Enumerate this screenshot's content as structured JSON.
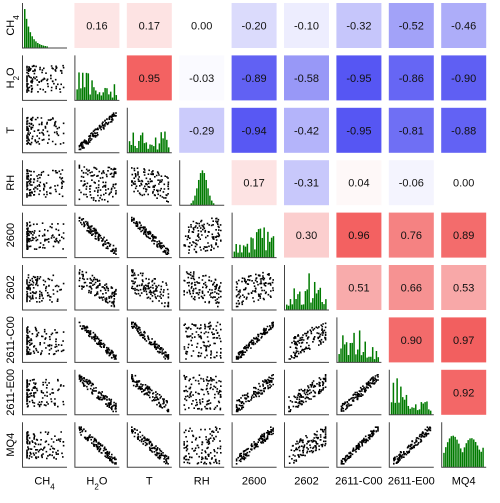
{
  "chart_data": {
    "type": "scatter-matrix",
    "variables": [
      {
        "label": "CH",
        "sub": "4"
      },
      {
        "label": "H",
        "sub": "2",
        "suffix": "O"
      },
      {
        "label": "T",
        "sub": "",
        "suffix": ""
      },
      {
        "label": "RH",
        "sub": "",
        "suffix": ""
      },
      {
        "label": "2600",
        "sub": "",
        "suffix": ""
      },
      {
        "label": "2602",
        "sub": "",
        "suffix": ""
      },
      {
        "label": "2611-C00",
        "sub": "",
        "suffix": ""
      },
      {
        "label": "2611-E00",
        "sub": "",
        "suffix": ""
      },
      {
        "label": "MQ4",
        "sub": "",
        "suffix": ""
      }
    ],
    "correlations": [
      {
        "row": 0,
        "col": 1,
        "text": "0.16",
        "value": 0.16
      },
      {
        "row": 0,
        "col": 2,
        "text": "0.17",
        "value": 0.17
      },
      {
        "row": 0,
        "col": 3,
        "text": "0.00",
        "value": 0.0
      },
      {
        "row": 0,
        "col": 4,
        "text": "-0.20",
        "value": -0.2
      },
      {
        "row": 0,
        "col": 5,
        "text": "-0.10",
        "value": -0.1
      },
      {
        "row": 0,
        "col": 6,
        "text": "-0.32",
        "value": -0.32
      },
      {
        "row": 0,
        "col": 7,
        "text": "-0.52",
        "value": -0.52
      },
      {
        "row": 0,
        "col": 8,
        "text": "-0.46",
        "value": -0.46
      },
      {
        "row": 1,
        "col": 2,
        "text": "0.95",
        "value": 0.95
      },
      {
        "row": 1,
        "col": 3,
        "text": "-0.03",
        "value": -0.03
      },
      {
        "row": 1,
        "col": 4,
        "text": "-0.89",
        "value": -0.89
      },
      {
        "row": 1,
        "col": 5,
        "text": "-0.58",
        "value": -0.58
      },
      {
        "row": 1,
        "col": 6,
        "text": "-0.95",
        "value": -0.95
      },
      {
        "row": 1,
        "col": 7,
        "text": "-0.86",
        "value": -0.86
      },
      {
        "row": 1,
        "col": 8,
        "text": "-0.90",
        "value": -0.9
      },
      {
        "row": 2,
        "col": 3,
        "text": "-0.29",
        "value": -0.29
      },
      {
        "row": 2,
        "col": 4,
        "text": "-0.94",
        "value": -0.94
      },
      {
        "row": 2,
        "col": 5,
        "text": "-0.42",
        "value": -0.42
      },
      {
        "row": 2,
        "col": 6,
        "text": "-0.95",
        "value": -0.95
      },
      {
        "row": 2,
        "col": 7,
        "text": "-0.81",
        "value": -0.81
      },
      {
        "row": 2,
        "col": 8,
        "text": "-0.88",
        "value": -0.88
      },
      {
        "row": 3,
        "col": 4,
        "text": "0.17",
        "value": 0.17
      },
      {
        "row": 3,
        "col": 5,
        "text": "-0.31",
        "value": -0.31
      },
      {
        "row": 3,
        "col": 6,
        "text": "0.04",
        "value": 0.04
      },
      {
        "row": 3,
        "col": 7,
        "text": "-0.06",
        "value": -0.06
      },
      {
        "row": 3,
        "col": 8,
        "text": "0.00",
        "value": 0.0
      },
      {
        "row": 4,
        "col": 5,
        "text": "0.30",
        "value": 0.3
      },
      {
        "row": 4,
        "col": 6,
        "text": "0.96",
        "value": 0.96
      },
      {
        "row": 4,
        "col": 7,
        "text": "0.76",
        "value": 0.76
      },
      {
        "row": 4,
        "col": 8,
        "text": "0.89",
        "value": 0.89
      },
      {
        "row": 5,
        "col": 6,
        "text": "0.51",
        "value": 0.51
      },
      {
        "row": 5,
        "col": 7,
        "text": "0.66",
        "value": 0.66
      },
      {
        "row": 5,
        "col": 8,
        "text": "0.53",
        "value": 0.53
      },
      {
        "row": 6,
        "col": 7,
        "text": "0.90",
        "value": 0.9
      },
      {
        "row": 6,
        "col": 8,
        "text": "0.97",
        "value": 0.97
      },
      {
        "row": 7,
        "col": 8,
        "text": "0.92",
        "value": 0.92
      }
    ],
    "colors": {
      "positive": "#f25a5a",
      "negative": "#4d4df2",
      "histogram": "#007a00",
      "scatter": "#000000"
    }
  }
}
